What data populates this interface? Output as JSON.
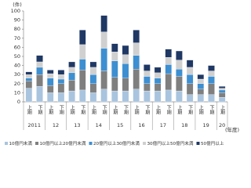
{
  "chart_data": {
    "type": "stacked_bar",
    "y_unit": "(件)",
    "x_unit": "(年度)",
    "categories": [
      "上期",
      "下期",
      "上期",
      "下期",
      "上期",
      "下期",
      "上期",
      "下期",
      "上期",
      "下期",
      "上期",
      "下期",
      "上期",
      "下期",
      "上期",
      "下期",
      "上期",
      "下期",
      "上期"
    ],
    "year_labels": [
      "2011",
      "12",
      "13",
      "14",
      "15",
      "16",
      "17",
      "18",
      "19",
      "20"
    ],
    "series": [
      {
        "name": "10億円未満",
        "color": "#a9c4de",
        "values": [
          15,
          17,
          10,
          10,
          12,
          13,
          10,
          14,
          12,
          12,
          14,
          12,
          12,
          13,
          12,
          8,
          8,
          8,
          5
        ]
      },
      {
        "name": "10億円以上20億円未満",
        "color": "#7f7f7f",
        "values": [
          8,
          13,
          8,
          10,
          12,
          22,
          10,
          20,
          15,
          14,
          22,
          8,
          8,
          18,
          16,
          12,
          6,
          12,
          5
        ]
      },
      {
        "name": "20億円以上30億円未満",
        "color": "#3d8fd1",
        "values": [
          3,
          8,
          8,
          5,
          8,
          12,
          10,
          25,
          18,
          16,
          15,
          8,
          6,
          10,
          8,
          10,
          6,
          8,
          3
        ]
      },
      {
        "name": "30億円以上50億円未満",
        "color": "#d0d0d0",
        "values": [
          4,
          6,
          5,
          5,
          6,
          16,
          8,
          18,
          10,
          10,
          14,
          6,
          6,
          8,
          10,
          8,
          5,
          6,
          2
        ]
      },
      {
        "name": "50億円以上",
        "color": "#1f3864",
        "values": [
          3,
          7,
          4,
          5,
          6,
          16,
          6,
          18,
          9,
          10,
          14,
          7,
          6,
          9,
          10,
          8,
          5,
          6,
          2
        ]
      }
    ],
    "ylim": [
      0,
      100
    ],
    "yticks": [
      0,
      10,
      20,
      30,
      40,
      50,
      60,
      70,
      80,
      90,
      100
    ],
    "grid": false
  }
}
